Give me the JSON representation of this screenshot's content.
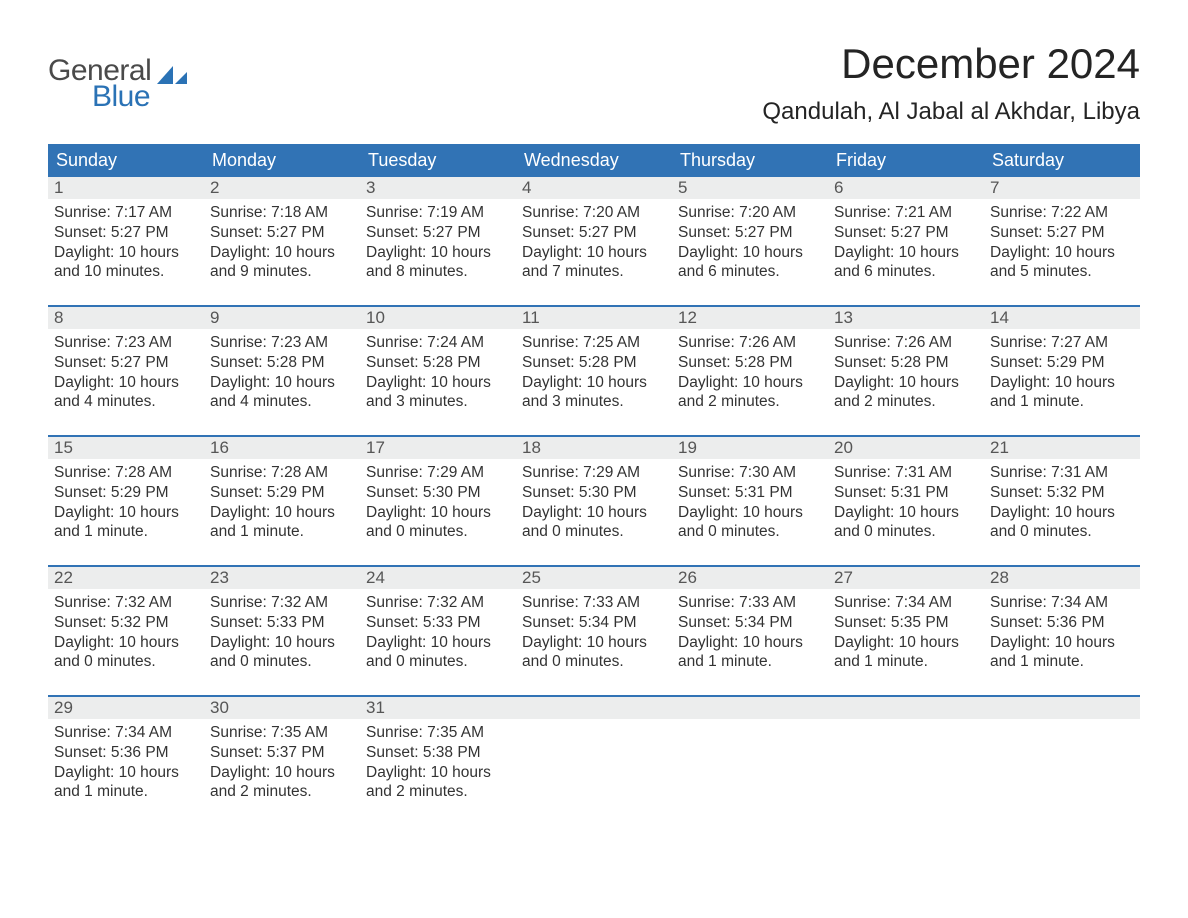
{
  "logo": {
    "text1": "General",
    "text2": "Blue",
    "sail_color": "#2a72b5",
    "text1_color": "#4a4a4a"
  },
  "title": "December 2024",
  "location": "Qandulah, Al Jabal al Akhdar, Libya",
  "colors": {
    "header_bg": "#3173b5",
    "header_text": "#ffffff",
    "daynum_bg": "#eceded",
    "daynum_text": "#565656",
    "body_text": "#333333",
    "row_border": "#3173b5",
    "page_bg": "#ffffff"
  },
  "typography": {
    "title_fontsize": 42,
    "location_fontsize": 24,
    "header_fontsize": 18,
    "daynum_fontsize": 17,
    "body_fontsize": 15.5,
    "font_family": "Arial"
  },
  "day_headers": [
    "Sunday",
    "Monday",
    "Tuesday",
    "Wednesday",
    "Thursday",
    "Friday",
    "Saturday"
  ],
  "weeks": [
    [
      {
        "n": "1",
        "sunrise": "Sunrise: 7:17 AM",
        "sunset": "Sunset: 5:27 PM",
        "dl1": "Daylight: 10 hours",
        "dl2": "and 10 minutes."
      },
      {
        "n": "2",
        "sunrise": "Sunrise: 7:18 AM",
        "sunset": "Sunset: 5:27 PM",
        "dl1": "Daylight: 10 hours",
        "dl2": "and 9 minutes."
      },
      {
        "n": "3",
        "sunrise": "Sunrise: 7:19 AM",
        "sunset": "Sunset: 5:27 PM",
        "dl1": "Daylight: 10 hours",
        "dl2": "and 8 minutes."
      },
      {
        "n": "4",
        "sunrise": "Sunrise: 7:20 AM",
        "sunset": "Sunset: 5:27 PM",
        "dl1": "Daylight: 10 hours",
        "dl2": "and 7 minutes."
      },
      {
        "n": "5",
        "sunrise": "Sunrise: 7:20 AM",
        "sunset": "Sunset: 5:27 PM",
        "dl1": "Daylight: 10 hours",
        "dl2": "and 6 minutes."
      },
      {
        "n": "6",
        "sunrise": "Sunrise: 7:21 AM",
        "sunset": "Sunset: 5:27 PM",
        "dl1": "Daylight: 10 hours",
        "dl2": "and 6 minutes."
      },
      {
        "n": "7",
        "sunrise": "Sunrise: 7:22 AM",
        "sunset": "Sunset: 5:27 PM",
        "dl1": "Daylight: 10 hours",
        "dl2": "and 5 minutes."
      }
    ],
    [
      {
        "n": "8",
        "sunrise": "Sunrise: 7:23 AM",
        "sunset": "Sunset: 5:27 PM",
        "dl1": "Daylight: 10 hours",
        "dl2": "and 4 minutes."
      },
      {
        "n": "9",
        "sunrise": "Sunrise: 7:23 AM",
        "sunset": "Sunset: 5:28 PM",
        "dl1": "Daylight: 10 hours",
        "dl2": "and 4 minutes."
      },
      {
        "n": "10",
        "sunrise": "Sunrise: 7:24 AM",
        "sunset": "Sunset: 5:28 PM",
        "dl1": "Daylight: 10 hours",
        "dl2": "and 3 minutes."
      },
      {
        "n": "11",
        "sunrise": "Sunrise: 7:25 AM",
        "sunset": "Sunset: 5:28 PM",
        "dl1": "Daylight: 10 hours",
        "dl2": "and 3 minutes."
      },
      {
        "n": "12",
        "sunrise": "Sunrise: 7:26 AM",
        "sunset": "Sunset: 5:28 PM",
        "dl1": "Daylight: 10 hours",
        "dl2": "and 2 minutes."
      },
      {
        "n": "13",
        "sunrise": "Sunrise: 7:26 AM",
        "sunset": "Sunset: 5:28 PM",
        "dl1": "Daylight: 10 hours",
        "dl2": "and 2 minutes."
      },
      {
        "n": "14",
        "sunrise": "Sunrise: 7:27 AM",
        "sunset": "Sunset: 5:29 PM",
        "dl1": "Daylight: 10 hours",
        "dl2": "and 1 minute."
      }
    ],
    [
      {
        "n": "15",
        "sunrise": "Sunrise: 7:28 AM",
        "sunset": "Sunset: 5:29 PM",
        "dl1": "Daylight: 10 hours",
        "dl2": "and 1 minute."
      },
      {
        "n": "16",
        "sunrise": "Sunrise: 7:28 AM",
        "sunset": "Sunset: 5:29 PM",
        "dl1": "Daylight: 10 hours",
        "dl2": "and 1 minute."
      },
      {
        "n": "17",
        "sunrise": "Sunrise: 7:29 AM",
        "sunset": "Sunset: 5:30 PM",
        "dl1": "Daylight: 10 hours",
        "dl2": "and 0 minutes."
      },
      {
        "n": "18",
        "sunrise": "Sunrise: 7:29 AM",
        "sunset": "Sunset: 5:30 PM",
        "dl1": "Daylight: 10 hours",
        "dl2": "and 0 minutes."
      },
      {
        "n": "19",
        "sunrise": "Sunrise: 7:30 AM",
        "sunset": "Sunset: 5:31 PM",
        "dl1": "Daylight: 10 hours",
        "dl2": "and 0 minutes."
      },
      {
        "n": "20",
        "sunrise": "Sunrise: 7:31 AM",
        "sunset": "Sunset: 5:31 PM",
        "dl1": "Daylight: 10 hours",
        "dl2": "and 0 minutes."
      },
      {
        "n": "21",
        "sunrise": "Sunrise: 7:31 AM",
        "sunset": "Sunset: 5:32 PM",
        "dl1": "Daylight: 10 hours",
        "dl2": "and 0 minutes."
      }
    ],
    [
      {
        "n": "22",
        "sunrise": "Sunrise: 7:32 AM",
        "sunset": "Sunset: 5:32 PM",
        "dl1": "Daylight: 10 hours",
        "dl2": "and 0 minutes."
      },
      {
        "n": "23",
        "sunrise": "Sunrise: 7:32 AM",
        "sunset": "Sunset: 5:33 PM",
        "dl1": "Daylight: 10 hours",
        "dl2": "and 0 minutes."
      },
      {
        "n": "24",
        "sunrise": "Sunrise: 7:32 AM",
        "sunset": "Sunset: 5:33 PM",
        "dl1": "Daylight: 10 hours",
        "dl2": "and 0 minutes."
      },
      {
        "n": "25",
        "sunrise": "Sunrise: 7:33 AM",
        "sunset": "Sunset: 5:34 PM",
        "dl1": "Daylight: 10 hours",
        "dl2": "and 0 minutes."
      },
      {
        "n": "26",
        "sunrise": "Sunrise: 7:33 AM",
        "sunset": "Sunset: 5:34 PM",
        "dl1": "Daylight: 10 hours",
        "dl2": "and 1 minute."
      },
      {
        "n": "27",
        "sunrise": "Sunrise: 7:34 AM",
        "sunset": "Sunset: 5:35 PM",
        "dl1": "Daylight: 10 hours",
        "dl2": "and 1 minute."
      },
      {
        "n": "28",
        "sunrise": "Sunrise: 7:34 AM",
        "sunset": "Sunset: 5:36 PM",
        "dl1": "Daylight: 10 hours",
        "dl2": "and 1 minute."
      }
    ],
    [
      {
        "n": "29",
        "sunrise": "Sunrise: 7:34 AM",
        "sunset": "Sunset: 5:36 PM",
        "dl1": "Daylight: 10 hours",
        "dl2": "and 1 minute."
      },
      {
        "n": "30",
        "sunrise": "Sunrise: 7:35 AM",
        "sunset": "Sunset: 5:37 PM",
        "dl1": "Daylight: 10 hours",
        "dl2": "and 2 minutes."
      },
      {
        "n": "31",
        "sunrise": "Sunrise: 7:35 AM",
        "sunset": "Sunset: 5:38 PM",
        "dl1": "Daylight: 10 hours",
        "dl2": "and 2 minutes."
      },
      null,
      null,
      null,
      null
    ]
  ]
}
